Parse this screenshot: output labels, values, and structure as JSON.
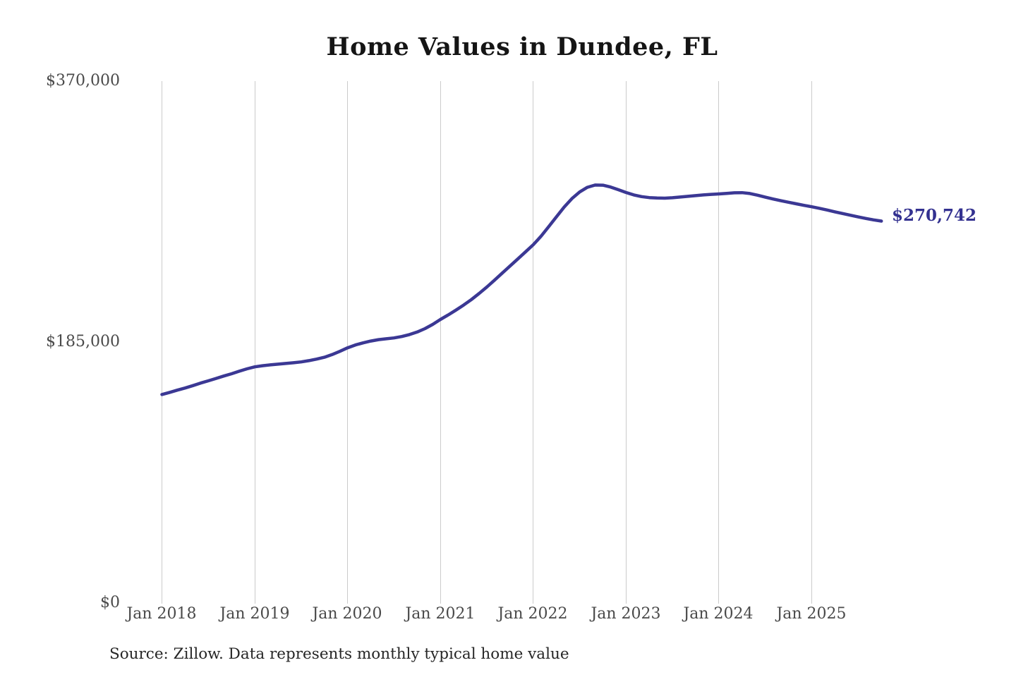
{
  "title": "Home Values in Dundee, FL",
  "source_note": "Source: Zillow. Data represents monthly typical home value",
  "end_label": "$270,742",
  "colors": {
    "line": "#3b3894",
    "end_label": "#333190",
    "gridline": "#cbcbcb",
    "axis_text": "#4a4a4a",
    "title_text": "#151515",
    "source_text": "#262626",
    "background": "#ffffff"
  },
  "y_axis": {
    "ticks": [
      "$370,000",
      "$185,000",
      "$0"
    ],
    "min": 0,
    "max": 370000
  },
  "x_axis": {
    "ticks": [
      "Jan 2018",
      "Jan 2019",
      "Jan 2020",
      "Jan 2021",
      "Jan 2022",
      "Jan 2023",
      "Jan 2024",
      "Jan 2025"
    ]
  },
  "chart_data": {
    "type": "line",
    "title": "Home Values in Dundee, FL",
    "xlabel": "",
    "ylabel": "",
    "ylim": [
      0,
      370000
    ],
    "y_tick_values": [
      0,
      185000,
      370000
    ],
    "grid": "vertical-only",
    "legend": "none",
    "x_start": "Jan 2018",
    "x_end": "Oct 2025",
    "x_interval": "monthly",
    "last_point_label": "$270,742",
    "last_point_value": 270742,
    "values": [
      147800,
      149300,
      150900,
      152400,
      154100,
      155900,
      157500,
      159200,
      160900,
      162500,
      164300,
      166000,
      167400,
      168200,
      168800,
      169300,
      169800,
      170300,
      170900,
      171800,
      172900,
      174200,
      176100,
      178400,
      180900,
      182900,
      184400,
      185700,
      186700,
      187300,
      187900,
      188900,
      190300,
      192100,
      194500,
      197500,
      201000,
      204200,
      207600,
      211200,
      215100,
      219400,
      224000,
      228900,
      233900,
      238900,
      243900,
      248900,
      254000,
      260000,
      266800,
      273800,
      280700,
      286700,
      291400,
      294700,
      296300,
      296200,
      294900,
      293000,
      291000,
      289300,
      288100,
      287400,
      287100,
      287000,
      287300,
      287800,
      288300,
      288800,
      289300,
      289700,
      290000,
      290400,
      290800,
      290900,
      290300,
      289100,
      287700,
      286400,
      285200,
      284100,
      283000,
      281900,
      280900,
      279800,
      278600,
      277300,
      276100,
      274900,
      273700,
      272600,
      271600,
      270742
    ]
  }
}
